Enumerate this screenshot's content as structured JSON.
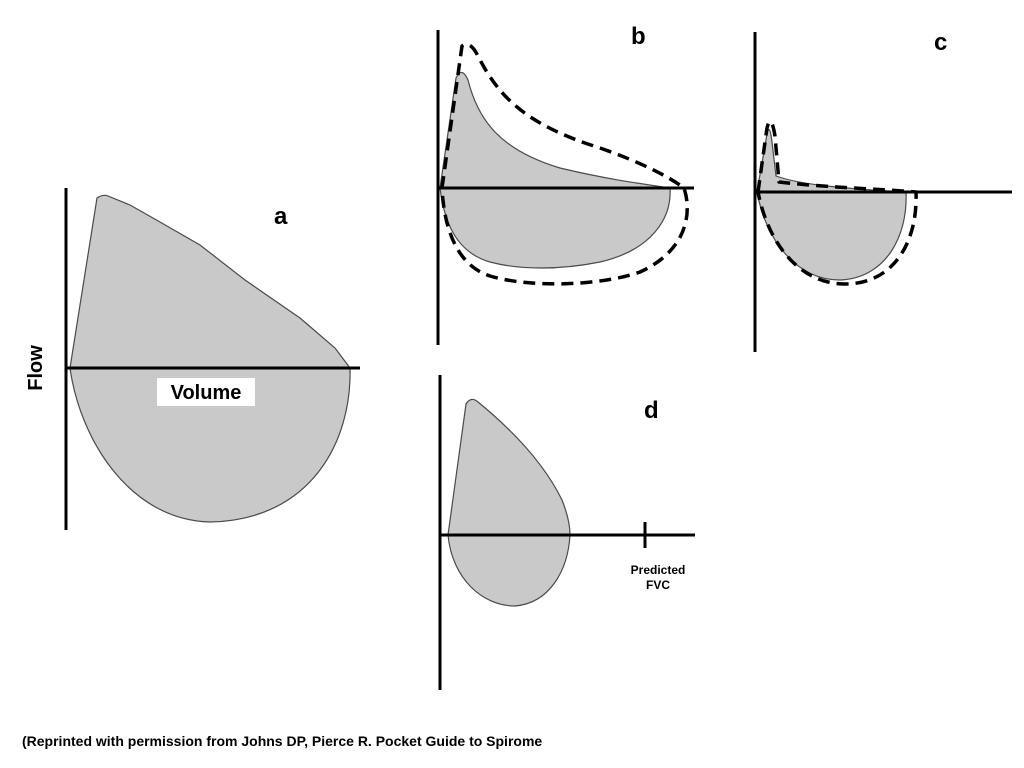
{
  "figure": {
    "flow_axis_label": "Flow",
    "volume_axis_label": "Volume",
    "panels": {
      "a": {
        "label": "a"
      },
      "b": {
        "label": "b"
      },
      "c": {
        "label": "c"
      },
      "d": {
        "label": "d",
        "predicted_fvc_label_line1": "Predicted",
        "predicted_fvc_label_line2": "FVC"
      }
    },
    "citation": "(Reprinted with permission from Johns DP, Pierce R. Pocket Guide to Spirome"
  },
  "colors": {
    "loop_fill": "#c9c9c9",
    "loop_outline": "#4a4a4a",
    "axis": "#000000",
    "background": "#ffffff"
  }
}
